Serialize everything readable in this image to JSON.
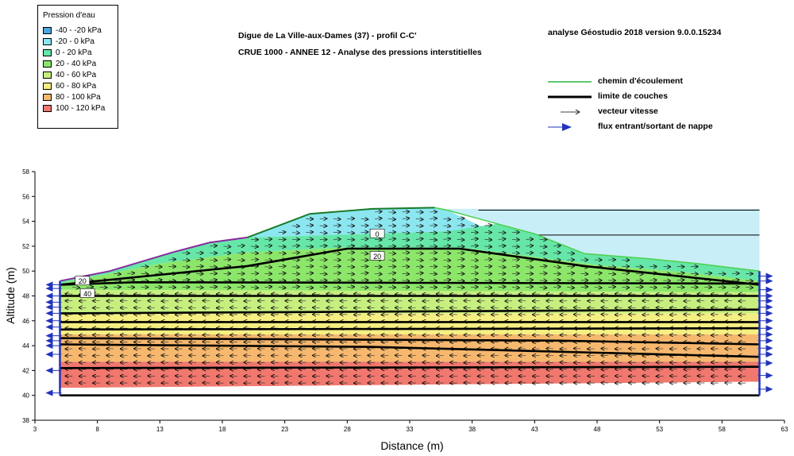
{
  "titles": {
    "line1": "Digue de La Ville-aux-Dames (37) - profil C-C'",
    "line2": "CRUE 1000 - ANNEE 12 - Analyse des pressions interstitielles",
    "software": "analyse Géostudio 2018 version 9.0.0.15234"
  },
  "pressure_legend": {
    "title": "Pression d'eau",
    "items": [
      {
        "label": "-40 - -20 kPa",
        "color": "#4da6e0"
      },
      {
        "label": "-20 - 0 kPa",
        "color": "#8ce6f0"
      },
      {
        "label": "0 - 20 kPa",
        "color": "#66e6a8"
      },
      {
        "label": "20 - 40 kPa",
        "color": "#8ce66a"
      },
      {
        "label": "40 - 60 kPa",
        "color": "#c6ef80"
      },
      {
        "label": "60 - 80 kPa",
        "color": "#f5ee82"
      },
      {
        "label": "80 - 100 kPa",
        "color": "#f5b86e"
      },
      {
        "label": "100 - 120 kPa",
        "color": "#f0786e"
      }
    ]
  },
  "symbol_legend": {
    "flow_path": "chemin d'écoulement",
    "layer_boundary": "limite de couches",
    "velocity_vector": "vecteur vitesse",
    "boundary_flux": "flux entrant/sortant de nappe"
  },
  "chart_data": {
    "type": "area",
    "xlabel": "Distance (m)",
    "ylabel": "Altitude (m)",
    "xlim": [
      3,
      63
    ],
    "ylim": [
      38,
      58
    ],
    "x_ticks": [
      "3",
      "8",
      "13",
      "18",
      "23",
      "28",
      "33",
      "38",
      "43",
      "48",
      "53",
      "58",
      "63"
    ],
    "y_ticks": [
      "38",
      "40",
      "42",
      "44",
      "46",
      "48",
      "50",
      "52",
      "54",
      "56",
      "58"
    ],
    "domain_x": [
      5,
      61
    ],
    "ground_surface": [
      [
        5,
        49.2
      ],
      [
        9,
        50.0
      ],
      [
        14,
        51.5
      ],
      [
        17,
        52.3
      ],
      [
        20,
        52.7
      ],
      [
        25,
        54.6
      ],
      [
        30,
        55.0
      ],
      [
        35,
        55.1
      ],
      [
        36,
        54.9
      ],
      [
        40,
        53.8
      ],
      [
        43,
        53.0
      ],
      [
        45,
        52.2
      ],
      [
        47,
        51.4
      ],
      [
        52,
        51.0
      ],
      [
        56,
        50.6
      ],
      [
        61,
        50.0
      ]
    ],
    "river_level": 55.0,
    "water_lines": [
      54.9,
      52.9
    ],
    "pressure_bands": [
      {
        "range": "-20 - 0 kPa",
        "top": [
          [
            20,
            52.7
          ],
          [
            25,
            54.6
          ],
          [
            30,
            55.0
          ],
          [
            35,
            55.1
          ],
          [
            36,
            54.9
          ]
        ],
        "bottom": [
          [
            20,
            52.7
          ],
          [
            30,
            53.0
          ],
          [
            36,
            53.2
          ],
          [
            40,
            53.0
          ]
        ]
      },
      {
        "range": "0 - 20 kPa",
        "top": [
          [
            5,
            49.2
          ],
          [
            9,
            50.0
          ],
          [
            14,
            51.5
          ],
          [
            17,
            52.3
          ],
          [
            20,
            52.7
          ],
          [
            30,
            53.0
          ],
          [
            36,
            53.2
          ],
          [
            40,
            53.8
          ],
          [
            43,
            53.0
          ],
          [
            45,
            52.2
          ],
          [
            47,
            51.4
          ],
          [
            52,
            51.0
          ],
          [
            56,
            50.6
          ],
          [
            61,
            50.0
          ]
        ],
        "bottom": [
          [
            5,
            49.0
          ],
          [
            13,
            50.6
          ],
          [
            20,
            51.5
          ],
          [
            28,
            51.9
          ],
          [
            37,
            51.9
          ],
          [
            48,
            50.5
          ],
          [
            55,
            49.9
          ],
          [
            61,
            49.2
          ]
        ]
      },
      {
        "range": "20 - 40 kPa",
        "top": [
          [
            5,
            49.0
          ],
          [
            13,
            50.6
          ],
          [
            20,
            51.5
          ],
          [
            28,
            51.9
          ],
          [
            37,
            51.9
          ],
          [
            48,
            50.5
          ],
          [
            55,
            49.9
          ],
          [
            61,
            49.2
          ]
        ],
        "bottom": [
          [
            5,
            48.5
          ],
          [
            61,
            48.3
          ]
        ]
      },
      {
        "range": "40 - 60 kPa",
        "top": [
          [
            5,
            48.5
          ],
          [
            61,
            48.3
          ]
        ],
        "bottom": [
          [
            5,
            46.6
          ],
          [
            61,
            46.6
          ]
        ]
      },
      {
        "range": "60 - 80 kPa",
        "top": [
          [
            5,
            46.6
          ],
          [
            61,
            46.6
          ]
        ],
        "bottom": [
          [
            5,
            44.9
          ],
          [
            61,
            44.9
          ]
        ]
      },
      {
        "range": "80 - 100 kPa",
        "top": [
          [
            5,
            44.9
          ],
          [
            61,
            44.9
          ]
        ],
        "bottom": [
          [
            5,
            42.7
          ],
          [
            61,
            42.7
          ]
        ]
      },
      {
        "range": "100 - 120 kPa",
        "top": [
          [
            5,
            42.7
          ],
          [
            61,
            42.7
          ]
        ],
        "bottom": [
          [
            5,
            40.6
          ],
          [
            61,
            41.1
          ]
        ]
      }
    ],
    "layer_boundaries": [
      [
        [
          5,
          48.9
        ],
        [
          11,
          49.5
        ],
        [
          20,
          50.4
        ],
        [
          28,
          51.8
        ],
        [
          37,
          51.8
        ],
        [
          47,
          50.4
        ],
        [
          61,
          48.9
        ]
      ],
      [
        [
          5,
          48.9
        ],
        [
          11,
          49.1
        ],
        [
          61,
          49.0
        ]
      ],
      [
        [
          5,
          48.0
        ],
        [
          61,
          48.0
        ]
      ],
      [
        [
          5,
          46.6
        ],
        [
          61,
          46.9
        ]
      ],
      [
        [
          5,
          45.9
        ],
        [
          61,
          45.9
        ]
      ],
      [
        [
          5,
          45.3
        ],
        [
          61,
          45.4
        ]
      ],
      [
        [
          5,
          44.6
        ],
        [
          45,
          44.4
        ],
        [
          61,
          44.1
        ]
      ],
      [
        [
          5,
          44.1
        ],
        [
          30,
          43.9
        ],
        [
          61,
          43.1
        ]
      ],
      [
        [
          5,
          42.2
        ],
        [
          61,
          42.3
        ]
      ],
      [
        [
          5,
          40.0
        ],
        [
          61,
          40.0
        ]
      ]
    ],
    "contour_labels": [
      {
        "label": "0",
        "x": 30.4,
        "y": 53.0
      },
      {
        "label": "20",
        "x": 30.4,
        "y": 51.2
      },
      {
        "label": "20",
        "x": 6.8,
        "y": 49.2
      },
      {
        "label": "40",
        "x": 7.2,
        "y": 48.2
      }
    ],
    "flux_arrows_left_y": [
      48.9,
      48.6,
      48.0,
      47.5,
      47.1,
      46.6,
      46.0,
      45.5,
      44.8,
      44.4,
      44.0,
      43.3,
      42.0,
      40.2
    ],
    "flux_arrows_right_y": [
      49.6,
      49.2,
      48.5,
      48.0,
      47.6,
      47.1,
      46.6,
      46.0,
      45.4,
      44.9,
      44.4,
      43.8,
      43.3,
      42.6,
      41.6,
      40.5
    ]
  }
}
